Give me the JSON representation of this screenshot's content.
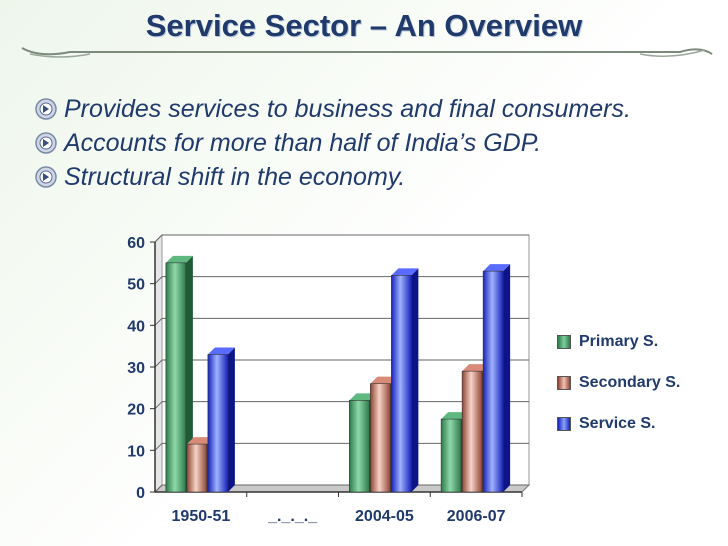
{
  "slide": {
    "title": "Service Sector – An Overview",
    "bullets": [
      "Provides services to business and final consumers.",
      "Accounts for more than half of India’s GDP.",
      "Structural shift in the economy."
    ]
  },
  "colors": {
    "title": "#1f3a6b",
    "primary": "#3a9a5e",
    "secondary": "#b9604a",
    "service": "#2b3de8"
  },
  "chart_data": {
    "type": "bar",
    "categories": [
      "1950-51",
      "_._._._",
      "2004-05",
      "2006-07"
    ],
    "series": [
      {
        "name": "Primary S.",
        "values": [
          55,
          null,
          22,
          17.5
        ],
        "color": "#3a9a5e"
      },
      {
        "name": "Secondary S.",
        "values": [
          11.5,
          null,
          26,
          29
        ],
        "color": "#b9604a"
      },
      {
        "name": "Service S.",
        "values": [
          33,
          null,
          52,
          53
        ],
        "color": "#2b3de8"
      }
    ],
    "yticks": [
      0,
      10,
      20,
      30,
      40,
      50,
      60
    ],
    "ylim": [
      0,
      60
    ],
    "grid": true,
    "legend": "right"
  }
}
